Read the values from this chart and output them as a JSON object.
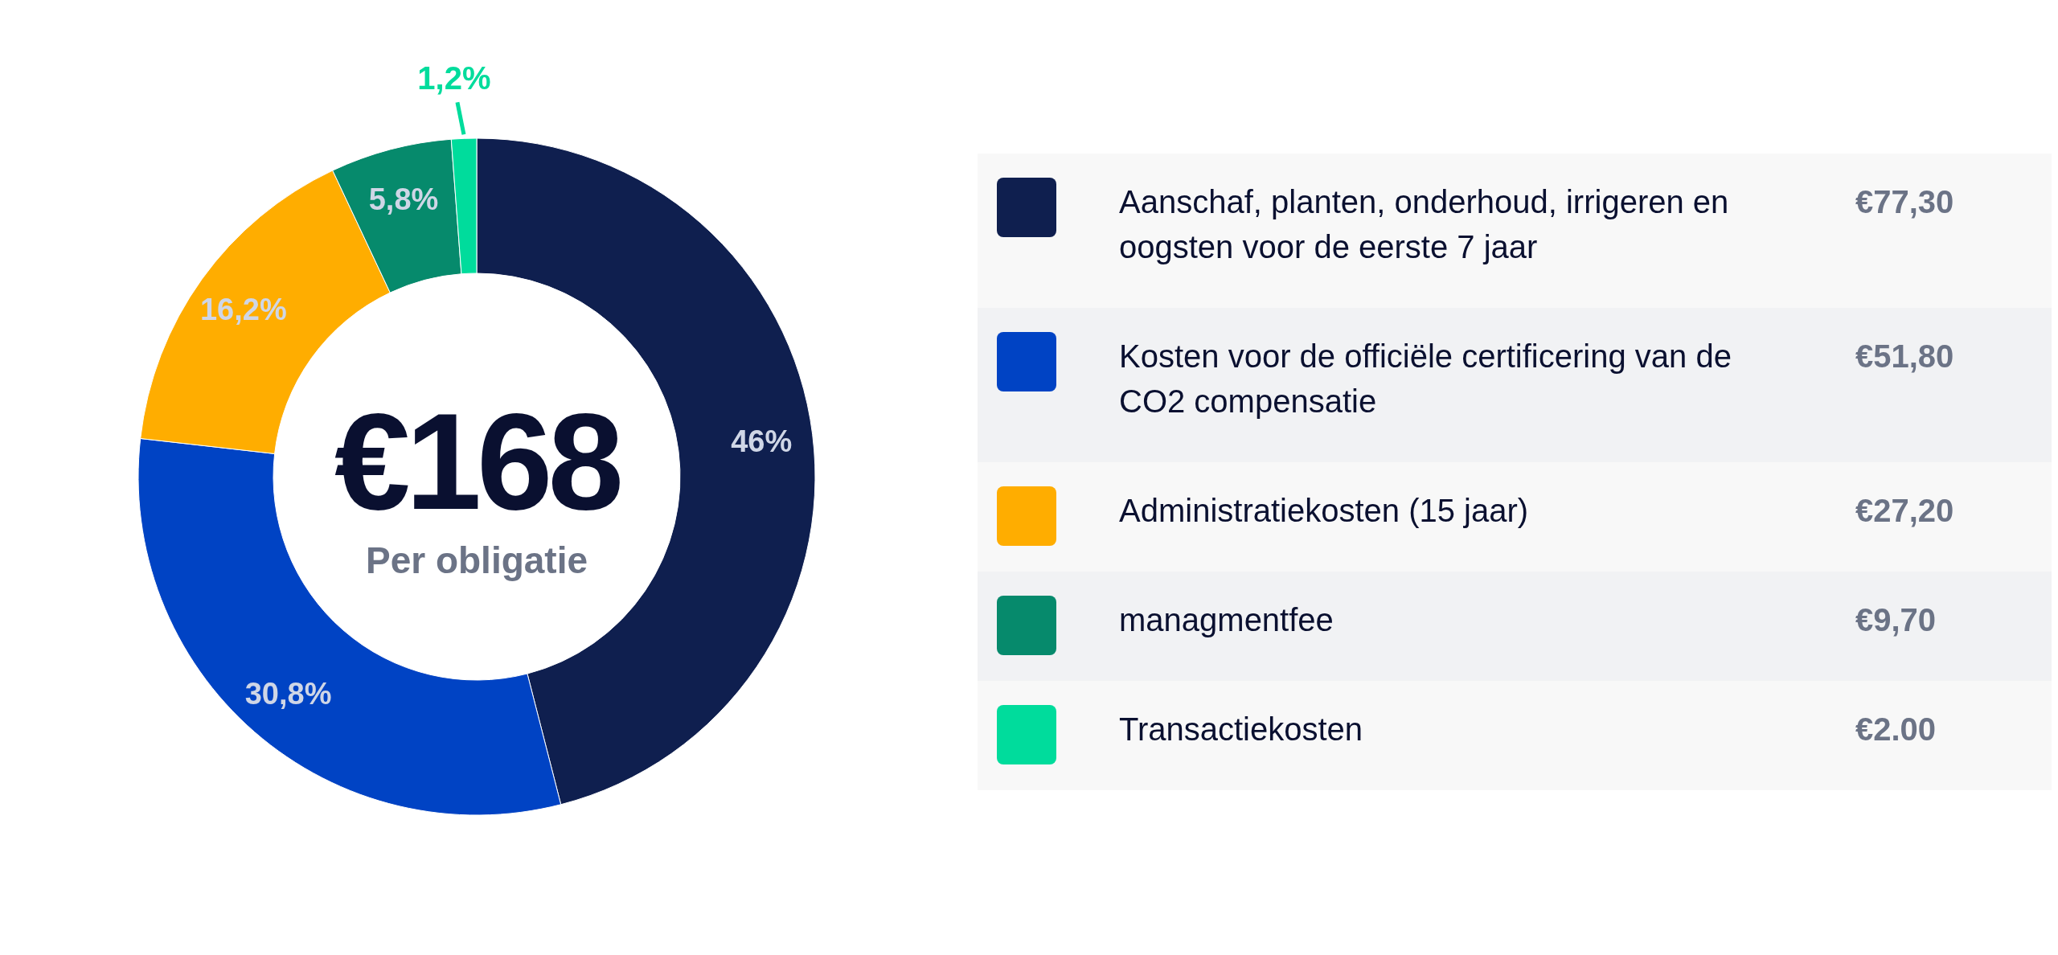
{
  "chart_data": {
    "type": "donut",
    "title": "€168",
    "subtitle": "Per obligatie",
    "categories": [
      "Aanschaf, planten, onderhoud, irrigeren en oogsten voor de eerste 7 jaar",
      "Kosten voor de officiële certificering van de CO2 compensatie",
      "Administratiekosten (15 jaar)",
      "managmentfee",
      "Transactiekosten"
    ],
    "values": [
      46,
      30.8,
      16.2,
      5.8,
      1.2
    ],
    "colors": [
      "#0f1f4f",
      "#0043c4",
      "#ffad00",
      "#068a6c",
      "#00dc9c"
    ],
    "value_labels": [
      "46%",
      "30,8%",
      "16,2%",
      "5,8%",
      "1,2%"
    ],
    "annotations": [
      "€77,30",
      "€51,80",
      "€27,20",
      "€9,70",
      "€2.00"
    ],
    "legend": "right"
  }
}
